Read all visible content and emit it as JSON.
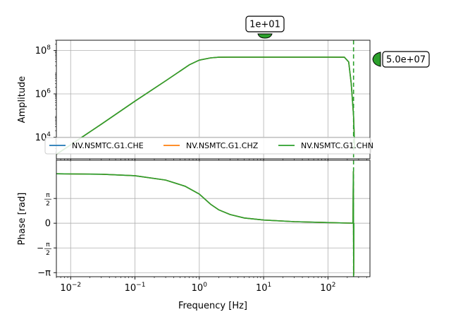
{
  "chart_data": {
    "type": "line",
    "title": "",
    "x_scale": "log",
    "xlim": [
      0.006,
      450
    ],
    "xlabel": "Frequency [Hz]",
    "x_ticks": [
      {
        "value": 0.01,
        "base": "10",
        "exp": "−2"
      },
      {
        "value": 0.1,
        "base": "10",
        "exp": "−1"
      },
      {
        "value": 1,
        "base": "10",
        "exp": "0"
      },
      {
        "value": 10,
        "base": "10",
        "exp": "1"
      },
      {
        "value": 100,
        "base": "10",
        "exp": "2"
      }
    ],
    "grid": true,
    "legend": {
      "placement": "between panels",
      "entries": [
        {
          "name": "NV.NSMTC.G1.CHE",
          "color": "#1f77b4"
        },
        {
          "name": "NV.NSMTC.G1.CHZ",
          "color": "#ff7f0e"
        },
        {
          "name": "NV.NSMTC.G1.CHN",
          "color": "#2ca02c"
        }
      ]
    },
    "panels": [
      {
        "name": "amplitude",
        "ylabel": "Amplitude",
        "y_scale": "log",
        "ylim": [
          1000,
          300000000
        ],
        "y_ticks": [
          {
            "value": 10000,
            "base": "10",
            "exp": "4"
          },
          {
            "value": 1000000,
            "base": "10",
            "exp": "6"
          },
          {
            "value": 100000000,
            "base": "10",
            "exp": "8"
          }
        ],
        "series_points": [
          [
            0.006,
            1600
          ],
          [
            0.03,
            40000
          ],
          [
            0.1,
            460000
          ],
          [
            0.3,
            4000000
          ],
          [
            0.7,
            22000000
          ],
          [
            1.0,
            36000000
          ],
          [
            1.5,
            46000000
          ],
          [
            2.0,
            49000000
          ],
          [
            3.0,
            50000000
          ],
          [
            10,
            50000000
          ],
          [
            100,
            50000000
          ],
          [
            180,
            49000000
          ],
          [
            210,
            30000000
          ],
          [
            230,
            3000000
          ],
          [
            250,
            100000
          ],
          [
            260,
            3000
          ]
        ]
      },
      {
        "name": "phase",
        "ylabel": "Phase [rad]",
        "ylim": [
          -3.4,
          4.0
        ],
        "y_ticks": [
          {
            "value": -3.14159,
            "label": "−π"
          },
          {
            "value": -1.5708,
            "label": "−π/2",
            "frac": true,
            "sign": "−",
            "num": "π",
            "den": "2"
          },
          {
            "value": 0,
            "label": "0"
          },
          {
            "value": 1.5708,
            "label": "π/2",
            "frac": true,
            "sign": "",
            "num": "π",
            "den": "2"
          }
        ],
        "series_points": [
          [
            0.006,
            3.14
          ],
          [
            0.03,
            3.11
          ],
          [
            0.1,
            3.02
          ],
          [
            0.3,
            2.74
          ],
          [
            0.6,
            2.35
          ],
          [
            1.0,
            1.85
          ],
          [
            1.5,
            1.2
          ],
          [
            2.0,
            0.85
          ],
          [
            3.0,
            0.55
          ],
          [
            5.0,
            0.33
          ],
          [
            10,
            0.2
          ],
          [
            30,
            0.1
          ],
          [
            100,
            0.04
          ],
          [
            200,
            0.01
          ],
          [
            245,
            0.0
          ],
          [
            248,
            3.3
          ],
          [
            251,
            -3.3
          ],
          [
            253,
            0.0
          ]
        ]
      }
    ],
    "markers": {
      "vertical_line_x": 250,
      "top_label": "1e+01",
      "top_marker_x": 10,
      "right_label": "5.0e+07",
      "right_marker_y": 50000000
    }
  }
}
